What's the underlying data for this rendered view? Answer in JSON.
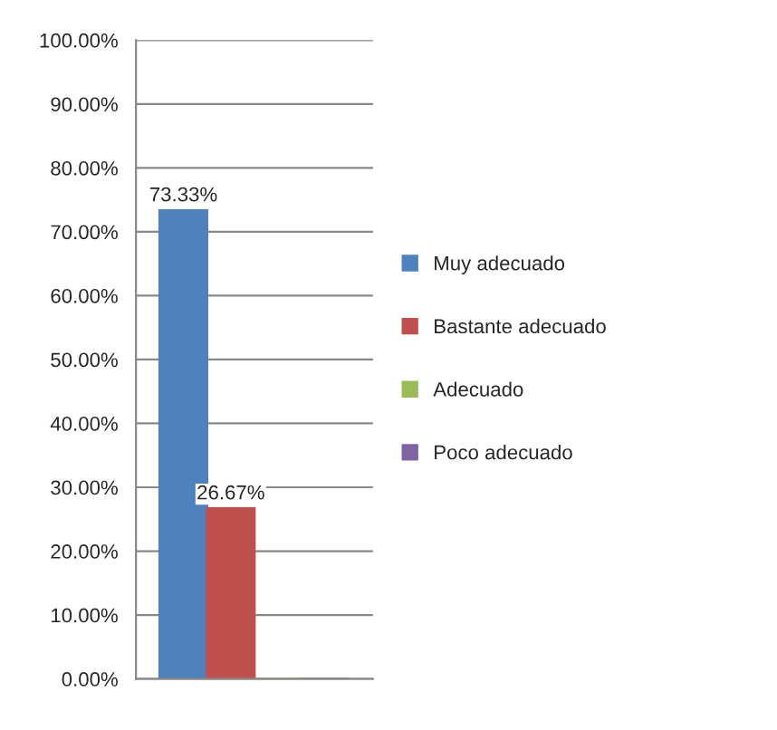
{
  "chart_data": {
    "type": "bar",
    "categories": [
      null
    ],
    "series": [
      {
        "name": "Muy adecuado",
        "color": "#4f81bd",
        "values": [
          73.33
        ],
        "value_labels": [
          "73.33%"
        ]
      },
      {
        "name": "Bastante adecuado",
        "color": "#c0504d",
        "values": [
          26.67
        ],
        "value_labels": [
          "26.67%"
        ]
      },
      {
        "name": "Adecuado",
        "color": "#9bbb59",
        "values": [
          0
        ],
        "value_labels": [
          null
        ]
      },
      {
        "name": "Poco adecuado",
        "color": "#8064a2",
        "values": [
          0
        ],
        "value_labels": [
          null
        ]
      }
    ],
    "ylim": [
      0,
      100
    ],
    "yticks": [
      {
        "value": 0,
        "label": "0.00%"
      },
      {
        "value": 10,
        "label": "10.00%"
      },
      {
        "value": 20,
        "label": "20.00%"
      },
      {
        "value": 30,
        "label": "30.00%"
      },
      {
        "value": 40,
        "label": "40.00%"
      },
      {
        "value": 50,
        "label": "50.00%"
      },
      {
        "value": 60,
        "label": "60.00%"
      },
      {
        "value": 70,
        "label": "70.00%"
      },
      {
        "value": 80,
        "label": "80.00%"
      },
      {
        "value": 90,
        "label": "90.00%"
      },
      {
        "value": 100,
        "label": "100.00%"
      }
    ],
    "grid": "y",
    "legend": "right"
  }
}
